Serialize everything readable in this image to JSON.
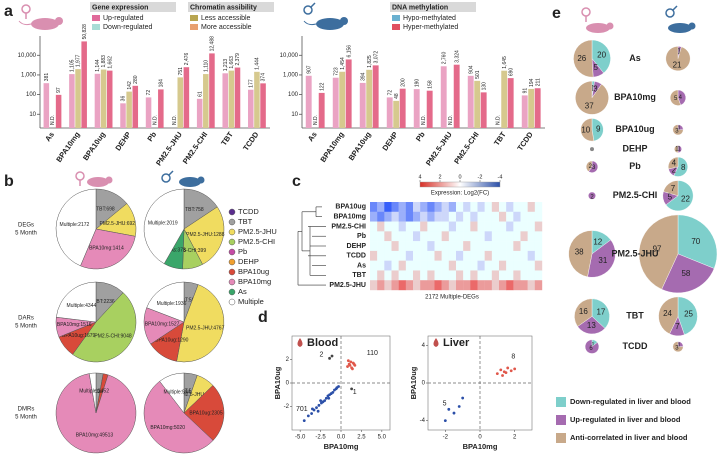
{
  "chart_data": [
    {
      "type": "grouped-bar-log",
      "panel_letter": "a",
      "nd_label": "N.D.",
      "categories": [
        "As",
        "BPA10mg",
        "BPA10ug",
        "DEHP",
        "Pb",
        "PM2.5-JHU",
        "PM2.5-CHI",
        "TBT",
        "TCDD"
      ],
      "category_colors": [
        "#3aa66a",
        "#d9739f",
        "#d84a3a",
        "#f0a030",
        "#c54ba5",
        "#d8c23a",
        "#8fbf3a",
        "#8c8c8c",
        "#5b2d8e"
      ],
      "ylim": [
        2,
        60000
      ],
      "log_scale": true,
      "grid": false,
      "yticks": [
        10,
        100,
        {
          "value": 1000,
          "label": "1,000"
        },
        {
          "value": 10000,
          "label": "10,000"
        }
      ],
      "series": [
        {
          "name": "Gene expression",
          "color": "#eaa3c3",
          "items": [
            {
              "name": "Up-regulated",
              "color": "#e06a9a"
            },
            {
              "name": "Down-regulated",
              "color": "#a8dcd6"
            }
          ]
        },
        {
          "name": "Chromatin assibility",
          "color": "#d6c98e",
          "items": [
            {
              "name": "Less accessible",
              "color": "#b8a550"
            },
            {
              "name": "More accessible",
              "color": "#e8a070"
            }
          ]
        },
        {
          "name": "DNA methylation",
          "color": "#e46a8a",
          "items": [
            {
              "name": "Hypo-methylated",
              "color": "#6ab0d0"
            },
            {
              "name": "Hyper-methylated",
              "color": "#e05060"
            }
          ]
        }
      ],
      "panels": [
        {
          "values": [
            [
              381,
              1105,
              1144,
              36,
              72,
              null,
              61,
              1213,
              177
            ],
            [
              null,
              1977,
              1883,
              142,
              null,
              751,
              1110,
              1663,
              1444
            ],
            [
              97,
              50828,
              1662,
              280,
              184,
              2476,
              12488,
              2379,
              374
            ]
          ],
          "value_labels": [
            [
              "381",
              "1,105",
              "1,144",
              "36",
              "72",
              null,
              "61",
              "1,213",
              "177"
            ],
            [
              null,
              "1,977",
              "1,883",
              "142",
              null,
              "751",
              "1,110",
              "1,663",
              "1,444"
            ],
            [
              "97",
              "50,828",
              "1,662",
              "280",
              "184",
              "2,476",
              "12,488",
              "2,379",
              "374"
            ]
          ]
        },
        {
          "values": [
            [
              907,
              723,
              394,
              72,
              190,
              2760,
              904,
              null,
              91
            ],
            [
              null,
              1454,
              1825,
              48,
              null,
              null,
              501,
              1645,
              194
            ],
            [
              122,
              6156,
              3072,
              200,
              158,
              3324,
              130,
              690,
              211
            ]
          ],
          "value_labels": [
            [
              "907",
              "723",
              "394",
              "72",
              "190",
              "2,760",
              "904",
              null,
              "91"
            ],
            [
              null,
              "1,454",
              "1,825",
              "48",
              null,
              null,
              "501",
              "1,645",
              "194"
            ],
            [
              "122",
              "6,156",
              "3,072",
              "200",
              "158",
              "3,324",
              "130",
              "690",
              "211"
            ]
          ]
        }
      ]
    },
    {
      "type": "pie-grid",
      "panel_letter": "b",
      "row_labels": [
        [
          "DEGs",
          "5 Month"
        ],
        [
          "DARs",
          "5 Month"
        ],
        [
          "DMRs",
          "5 Month"
        ]
      ],
      "legend": {
        "names": [
          "TCDD",
          "TBT",
          "PM2.5-JHU",
          "PM2.5-CHI",
          "Pb",
          "DEHP",
          "BPA10ug",
          "BPA10mg",
          "As",
          "Multiple"
        ],
        "colors": [
          "#5b2d8e",
          "#a0a0a0",
          "#f0dc60",
          "#a8d060",
          "#c54ba5",
          "#f0a030",
          "#d84a3a",
          "#e58ab8",
          "#3aa66a",
          "#ffffff"
        ]
      },
      "pies": [
        {
          "labels": [
            "TBT:698",
            "PM2.5-JHU:692",
            "BPA10mg:1414",
            "Multiple:2172"
          ],
          "values": [
            698,
            692,
            1414,
            2172
          ],
          "colors": [
            "#a0a0a0",
            "#f0dc60",
            "#e58ab8",
            "#ffffff"
          ]
        },
        {
          "labels": [
            "TBT:758",
            "PM2.5-JHU:1288",
            "PM2.5-CHI:399",
            "As:373",
            "Multiple:2019"
          ],
          "values": [
            758,
            1288,
            399,
            373,
            2019
          ],
          "colors": [
            "#a0a0a0",
            "#f0dc60",
            "#a8d060",
            "#3aa66a",
            "#ffffff"
          ]
        },
        {
          "labels": [
            "TBT:2236",
            "PM2.5-CHI:9048",
            "BPA10ug:1679",
            "BPA10mg:1516",
            "Multiple:4344"
          ],
          "values": [
            2236,
            9048,
            1679,
            1516,
            4344
          ],
          "colors": [
            "#a0a0a0",
            "#a8d060",
            "#d84a3a",
            "#e58ab8",
            "#ffffff"
          ]
        },
        {
          "labels": [
            "TBT:582",
            "PM2.5-JHU:4767",
            "BPA10ug:1290",
            "BPA10mg:1527",
            "Multiple:1936"
          ],
          "values": [
            582,
            4767,
            1290,
            1527,
            1936
          ],
          "colors": [
            "#a0a0a0",
            "#f0dc60",
            "#d84a3a",
            "#e58ab8",
            "#ffffff"
          ]
        },
        {
          "labels": [
            "TBT:1547",
            "BPA10ug:1062",
            "BPA10mg:49513",
            "Multiple:1452"
          ],
          "values": [
            1547,
            1062,
            49513,
            1452
          ],
          "colors": [
            "#a0a0a0",
            "#d84a3a",
            "#e58ab8",
            "#ffffff"
          ]
        },
        {
          "labels": [
            "TBT:514",
            "PM2.5-JHU:717",
            "BPA10ug:2305",
            "BPA10mg:5020",
            "Multiple:994"
          ],
          "values": [
            514,
            717,
            2305,
            5020,
            994
          ],
          "colors": [
            "#a0a0a0",
            "#f0dc60",
            "#d84a3a",
            "#e58ab8",
            "#ffffff"
          ]
        }
      ]
    },
    {
      "type": "heatmap",
      "panel_letter": "c",
      "colorbar_title": "Expression: Log2(FC)",
      "footnote": "2172 Multiple-DEGs",
      "zlim": [
        -4,
        4
      ],
      "zticks": [
        4,
        2,
        0,
        -2,
        -4
      ],
      "categories": [
        "BPA10ug",
        "BPA10mg",
        "PM2.5-CHI",
        "Pb",
        "DEHP",
        "TCDD",
        "As",
        "TBT",
        "PM2.5-JHU"
      ],
      "category_colors": [
        "#d84a3a",
        "#d9739f",
        "#8fbf3a",
        "#c54ba5",
        "#f0a030",
        "#5b2d8e",
        "#3aa66a",
        "#8c8c8c",
        "#d8c23a"
      ],
      "values": [
        [
          -3,
          -2,
          -4,
          -3,
          -2,
          -3,
          -1,
          -2,
          -3,
          -2,
          -1,
          -2,
          0,
          -1,
          0,
          -1,
          0,
          1,
          0,
          -1,
          0,
          0,
          1,
          0
        ],
        [
          -2,
          -3,
          -2,
          -1,
          -2,
          -3,
          -2,
          -1,
          -2,
          -1,
          -1,
          0,
          -1,
          0,
          -1,
          0,
          0,
          0,
          1,
          0,
          -1,
          0,
          0,
          0
        ],
        [
          0,
          1,
          0,
          0,
          -1,
          0,
          0,
          1,
          0,
          0,
          0,
          -1,
          0,
          0,
          1,
          0,
          0,
          0,
          0,
          -1,
          0,
          0,
          0,
          1
        ],
        [
          0,
          0,
          1,
          0,
          0,
          0,
          -1,
          0,
          0,
          0,
          1,
          0,
          0,
          0,
          0,
          0,
          -1,
          0,
          0,
          0,
          0,
          1,
          0,
          0
        ],
        [
          0,
          0,
          0,
          1,
          0,
          0,
          0,
          0,
          -1,
          0,
          0,
          0,
          0,
          1,
          0,
          0,
          0,
          0,
          0,
          0,
          1,
          0,
          0,
          0
        ],
        [
          1,
          0,
          0,
          0,
          0,
          -1,
          0,
          0,
          0,
          1,
          0,
          0,
          -1,
          0,
          0,
          0,
          1,
          0,
          0,
          0,
          0,
          0,
          -1,
          0
        ],
        [
          0,
          0,
          -1,
          0,
          1,
          0,
          0,
          0,
          0,
          0,
          0,
          1,
          0,
          0,
          0,
          -1,
          0,
          0,
          1,
          0,
          0,
          0,
          0,
          1
        ],
        [
          0,
          1,
          0,
          1,
          0,
          0,
          1,
          0,
          1,
          0,
          0,
          0,
          1,
          0,
          1,
          0,
          0,
          1,
          0,
          0,
          1,
          0,
          0,
          0
        ],
        [
          1,
          2,
          1,
          2,
          3,
          2,
          1,
          2,
          2,
          3,
          2,
          1,
          2,
          2,
          3,
          2,
          2,
          1,
          2,
          3,
          2,
          2,
          1,
          2
        ]
      ]
    },
    {
      "type": "scatter",
      "panel_letter": "d",
      "title": "Blood",
      "xlabel": "BPA10mg",
      "ylabel": "BPA10ug",
      "xlim": [
        -6,
        6
      ],
      "ylim": [
        -4,
        4
      ],
      "xticks": [
        {
          "value": -5,
          "label": "-5.0"
        },
        {
          "value": -2.5,
          "label": "-2.5"
        },
        {
          "value": 0,
          "label": "0.0"
        },
        {
          "value": 2.5,
          "label": "2.5"
        },
        {
          "value": 5,
          "label": "5.0"
        }
      ],
      "yticks": [
        -2,
        0,
        2
      ],
      "annotations": [
        2,
        110,
        701,
        1
      ],
      "series": [
        {
          "color": "#2b4fa8",
          "x": [
            -4.5,
            -4,
            -3.6,
            -3.3,
            -3,
            -2.7,
            -2.4,
            -2.2,
            -2,
            -1.8,
            -1.6,
            -1.4,
            -1.2,
            -1,
            -0.8,
            -0.6,
            -0.5,
            -0.3,
            -2.8,
            -3.5,
            -1.5,
            -2.5
          ],
          "values": [
            -3.2,
            -2.8,
            -2.6,
            -2.3,
            -2.1,
            -1.9,
            -1.7,
            -1.6,
            -1.5,
            -1.3,
            -1.1,
            -1,
            -0.9,
            -0.8,
            -0.6,
            -0.5,
            -0.4,
            -0.3,
            -2.4,
            -2.2,
            -1.3,
            -1.5
          ]
        },
        {
          "color": "#e0574a",
          "x": [
            0.8,
            1,
            1.1,
            1.2,
            1.3,
            1.5,
            1.7,
            0.9,
            1.4,
            1.6
          ],
          "values": [
            1.4,
            1.6,
            1.5,
            1.8,
            1.3,
            1.7,
            1.5,
            1.9,
            1.2,
            1.6
          ]
        },
        {
          "color": "#444444",
          "x": [
            -1.4,
            -1.1,
            1.3
          ],
          "values": [
            2.1,
            2.3,
            -0.5
          ]
        }
      ]
    },
    {
      "type": "scatter",
      "title": "Liver",
      "xlabel": "BPA10mg",
      "ylabel": "BPA10ug",
      "xlim": [
        -3,
        3
      ],
      "ylim": [
        -5,
        5
      ],
      "xticks": [
        -2,
        0,
        2
      ],
      "yticks": [
        -4,
        0,
        4
      ],
      "annotations": [
        8,
        5
      ],
      "series": [
        {
          "color": "#e0574a",
          "x": [
            1,
            1.2,
            1.4,
            1.6,
            1.8,
            1.3,
            1.5,
            2
          ],
          "values": [
            1,
            1.4,
            1.2,
            1.6,
            1.3,
            0.8,
            1.1,
            1.5
          ]
        },
        {
          "color": "#2b4fa8",
          "x": [
            -2,
            -1.8,
            -1.5,
            -1.2,
            -1
          ],
          "values": [
            -4,
            -2.8,
            -3.2,
            -2.5,
            -1.6
          ]
        }
      ]
    },
    {
      "type": "pie-bubbles",
      "panel_letter": "e",
      "categories": [
        "As",
        "BPA10mg",
        "BPA10ug",
        "DEHP",
        "Pb",
        "PM2.5-CHI",
        "PM2.5-JHU",
        "TBT",
        "TCDD"
      ],
      "category_colors": [
        "#3aa66a",
        "#d9739f",
        "#d84a3a",
        "#f0a030",
        "#c54ba5",
        "#8fbf3a",
        "#d8c23a",
        "#8c8c8c",
        "#5b2d8e"
      ],
      "series": [
        {
          "name": "Down-regulated in liver and blood",
          "color": "#7ecfcb",
          "female": [
            20,
            1,
            9,
            null,
            null,
            null,
            12,
            17,
            1
          ],
          "male": [
            null,
            null,
            null,
            null,
            8,
            22,
            70,
            25,
            null
          ]
        },
        {
          "name": "Up-regulated in liver and blood",
          "color": "#a56bb0",
          "female": [
            5,
            3,
            null,
            null,
            3,
            2,
            31,
            13,
            6
          ],
          "male": [
            1,
            4,
            1,
            1,
            2,
            5,
            58,
            7,
            1
          ]
        },
        {
          "name": "Anti-correlated in liver and blood",
          "color": "#c8a98a",
          "female": [
            26,
            37,
            10,
            null,
            2,
            null,
            38,
            16,
            null
          ],
          "male": [
            21,
            5,
            3,
            1,
            4,
            7,
            97,
            24,
            3
          ]
        }
      ]
    }
  ]
}
